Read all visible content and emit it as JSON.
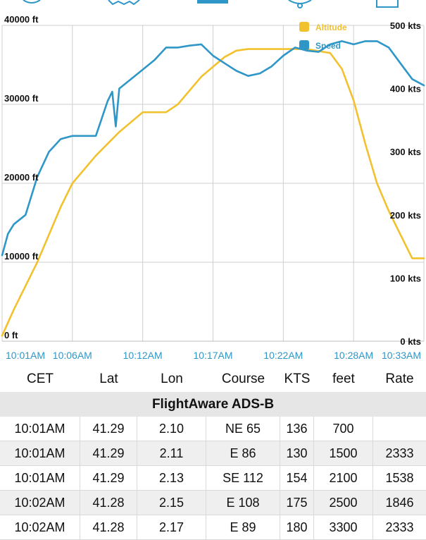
{
  "toolbar": {
    "icons": [
      "left-icon",
      "map-icon",
      "graph-tab-icon",
      "alert-icon",
      "share-icon"
    ]
  },
  "chart_data": {
    "type": "line",
    "legend_position": "top-right",
    "grid": true,
    "x_labels": [
      "10:01AM",
      "10:06AM",
      "10:12AM",
      "10:17AM",
      "10:22AM",
      "10:28AM",
      "10:33AM"
    ],
    "x_range_minutes": [
      0,
      36
    ],
    "left_axis": {
      "unit": "ft",
      "ticks": [
        "0 ft",
        "10000 ft",
        "20000 ft",
        "30000 ft",
        "40000 ft"
      ],
      "range": [
        0,
        40000
      ]
    },
    "right_axis": {
      "unit": "kts",
      "ticks": [
        "0 kts",
        "100 kts",
        "200 kts",
        "300 kts",
        "400 kts",
        "500 kts"
      ],
      "range": [
        0,
        500
      ]
    },
    "series": [
      {
        "name": "Altitude",
        "color": "#f2c12e",
        "axis": "left",
        "x": [
          0,
          1,
          2,
          3,
          4,
          5,
          6,
          8,
          10,
          12,
          14,
          15,
          17,
          19,
          20,
          21,
          22,
          24,
          26,
          28,
          29,
          30,
          31,
          32,
          33,
          34,
          35,
          36
        ],
        "y": [
          700,
          4000,
          7000,
          10000,
          13500,
          17000,
          20000,
          23500,
          26500,
          29000,
          29000,
          30000,
          33500,
          36000,
          36800,
          37000,
          37000,
          37000,
          37000,
          36500,
          34500,
          30500,
          25000,
          20000,
          16500,
          13500,
          10500,
          10500
        ]
      },
      {
        "name": "Speed",
        "color": "#2e97c8",
        "axis": "right",
        "x": [
          0,
          0.5,
          1,
          2,
          3,
          4,
          5,
          6,
          7,
          8,
          9,
          9.4,
          9.7,
          10,
          11,
          12,
          13,
          14,
          15,
          16,
          17,
          18,
          19,
          20,
          21,
          22,
          23,
          24,
          25,
          26,
          27,
          28,
          29,
          30,
          31,
          32,
          33,
          34,
          35,
          36
        ],
        "y": [
          136,
          170,
          185,
          200,
          260,
          300,
          320,
          325,
          325,
          325,
          380,
          395,
          340,
          400,
          415,
          430,
          445,
          465,
          465,
          468,
          470,
          452,
          440,
          428,
          420,
          424,
          435,
          452,
          465,
          460,
          458,
          470,
          475,
          470,
          475,
          475,
          465,
          440,
          415,
          405
        ]
      }
    ]
  },
  "table": {
    "columns": [
      "CET",
      "Lat",
      "Lon",
      "Course",
      "KTS",
      "feet",
      "Rate"
    ],
    "source_label": "FlightAware ADS-B",
    "rows": [
      [
        "10:01AM",
        "41.29",
        "2.10",
        "NE 65",
        "136",
        "700",
        ""
      ],
      [
        "10:01AM",
        "41.29",
        "2.11",
        "E 86",
        "130",
        "1500",
        "2333"
      ],
      [
        "10:01AM",
        "41.29",
        "2.13",
        "SE 112",
        "154",
        "2100",
        "1538"
      ],
      [
        "10:02AM",
        "41.28",
        "2.15",
        "E 108",
        "175",
        "2500",
        "1846"
      ],
      [
        "10:02AM",
        "41.28",
        "2.17",
        "E 89",
        "180",
        "3300",
        "2333"
      ]
    ]
  }
}
